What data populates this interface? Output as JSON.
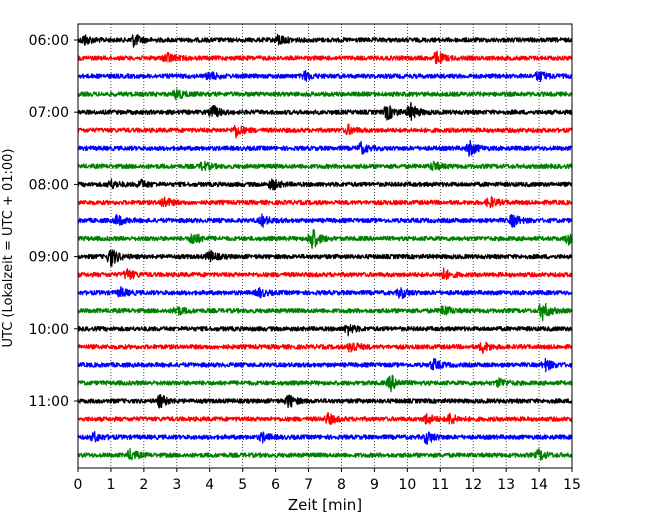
{
  "chart_data": {
    "type": "line",
    "title": "",
    "xlabel": "Zeit  [min]",
    "ylabel": "UTC (Lokalzeit = UTC + 01:00)",
    "xlim": [
      0,
      15
    ],
    "x_ticks": [
      0,
      1,
      2,
      3,
      4,
      5,
      6,
      7,
      8,
      9,
      10,
      11,
      12,
      13,
      14,
      15
    ],
    "x_tick_labels": [
      "0",
      "1",
      "2",
      "3",
      "4",
      "5",
      "6",
      "7",
      "8",
      "9",
      "10",
      "11",
      "12",
      "13",
      "14",
      "15"
    ],
    "grid": "vertical dotted",
    "trace_interval_min": 15,
    "trace_count": 24,
    "trace_colors": [
      "#000000",
      "#ff0000",
      "#0000ff",
      "#008000"
    ],
    "y_tick_labels": [
      "06:00",
      "07:00",
      "08:00",
      "09:00",
      "10:00",
      "11:00"
    ],
    "y_tick_trace_index": [
      0,
      4,
      8,
      12,
      16,
      20
    ],
    "series": [
      {
        "start": "06:00",
        "color": "#000000",
        "events": [
          [
            0.2,
            5
          ],
          [
            1.7,
            6
          ],
          [
            6.1,
            5
          ]
        ]
      },
      {
        "start": "06:15",
        "color": "#ff0000",
        "events": [
          [
            2.7,
            5
          ],
          [
            10.9,
            6
          ]
        ]
      },
      {
        "start": "06:30",
        "color": "#0000ff",
        "events": [
          [
            4.0,
            4
          ],
          [
            6.9,
            4
          ],
          [
            14.0,
            5
          ]
        ]
      },
      {
        "start": "06:45",
        "color": "#008000",
        "events": [
          [
            3.0,
            5
          ]
        ]
      },
      {
        "start": "07:00",
        "color": "#000000",
        "events": [
          [
            4.1,
            6
          ],
          [
            9.4,
            7
          ],
          [
            10.1,
            8
          ]
        ]
      },
      {
        "start": "07:15",
        "color": "#ff0000",
        "events": [
          [
            4.8,
            6
          ],
          [
            8.2,
            4
          ]
        ]
      },
      {
        "start": "07:30",
        "color": "#0000ff",
        "events": [
          [
            8.6,
            5
          ],
          [
            11.9,
            7
          ]
        ]
      },
      {
        "start": "07:45",
        "color": "#008000",
        "events": [
          [
            3.8,
            4
          ],
          [
            10.8,
            4
          ]
        ]
      },
      {
        "start": "08:00",
        "color": "#000000",
        "events": [
          [
            1.0,
            4
          ],
          [
            1.9,
            4
          ],
          [
            5.9,
            5
          ]
        ]
      },
      {
        "start": "08:15",
        "color": "#ff0000",
        "events": [
          [
            2.6,
            5
          ],
          [
            12.5,
            5
          ]
        ]
      },
      {
        "start": "08:30",
        "color": "#0000ff",
        "events": [
          [
            1.2,
            5
          ],
          [
            5.6,
            5
          ],
          [
            13.2,
            6
          ]
        ]
      },
      {
        "start": "08:45",
        "color": "#008000",
        "events": [
          [
            3.5,
            6
          ],
          [
            7.1,
            11
          ],
          [
            14.9,
            5
          ]
        ]
      },
      {
        "start": "09:00",
        "color": "#000000",
        "events": [
          [
            1.0,
            9
          ],
          [
            4.0,
            5
          ]
        ]
      },
      {
        "start": "09:15",
        "color": "#ff0000",
        "events": [
          [
            1.5,
            5
          ],
          [
            11.1,
            5
          ]
        ]
      },
      {
        "start": "09:30",
        "color": "#0000ff",
        "events": [
          [
            1.3,
            4
          ],
          [
            5.5,
            4
          ],
          [
            9.8,
            5
          ]
        ]
      },
      {
        "start": "09:45",
        "color": "#008000",
        "events": [
          [
            3.0,
            4
          ],
          [
            11.1,
            5
          ],
          [
            14.1,
            9
          ]
        ]
      },
      {
        "start": "10:00",
        "color": "#000000",
        "events": [
          [
            8.2,
            5
          ]
        ]
      },
      {
        "start": "10:15",
        "color": "#ff0000",
        "events": [
          [
            8.3,
            6
          ],
          [
            12.3,
            5
          ]
        ]
      },
      {
        "start": "10:30",
        "color": "#0000ff",
        "events": [
          [
            10.8,
            5
          ],
          [
            14.2,
            5
          ]
        ]
      },
      {
        "start": "10:45",
        "color": "#008000",
        "events": [
          [
            9.5,
            7
          ],
          [
            12.8,
            4
          ]
        ]
      },
      {
        "start": "11:00",
        "color": "#000000",
        "events": [
          [
            2.5,
            6
          ],
          [
            6.4,
            6
          ]
        ]
      },
      {
        "start": "11:15",
        "color": "#ff0000",
        "events": [
          [
            7.6,
            5
          ],
          [
            10.6,
            5
          ],
          [
            11.3,
            5
          ]
        ]
      },
      {
        "start": "11:30",
        "color": "#0000ff",
        "events": [
          [
            0.5,
            4
          ],
          [
            5.6,
            4
          ],
          [
            10.6,
            6
          ]
        ]
      },
      {
        "start": "11:45",
        "color": "#008000",
        "events": [
          [
            1.6,
            5
          ],
          [
            14.0,
            5
          ]
        ]
      }
    ]
  }
}
